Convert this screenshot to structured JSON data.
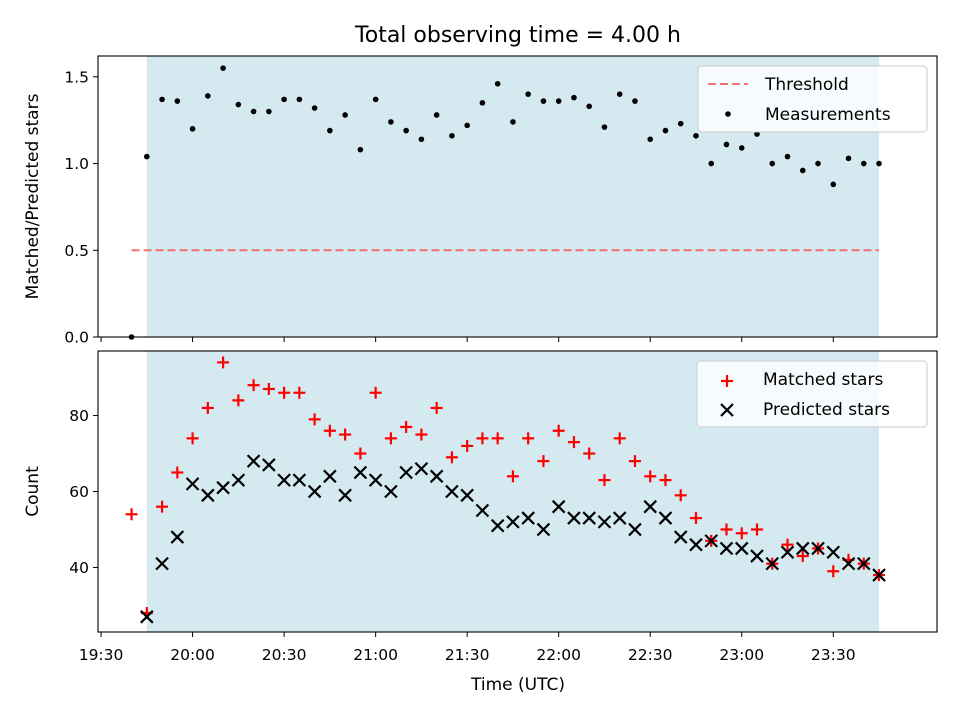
{
  "chart_data": {
    "title": "Total observing time = 4.00 h",
    "xlabel": "Time (UTC)",
    "x_ticks": [
      "19:30",
      "20:00",
      "20:30",
      "21:00",
      "21:30",
      "22:00",
      "22:30",
      "23:00",
      "23:30"
    ],
    "x_tick_minutes": [
      1170,
      1200,
      1230,
      1260,
      1290,
      1320,
      1350,
      1380,
      1410
    ],
    "xlim_minutes": [
      1169,
      1444
    ],
    "observing_window_minutes": [
      1185,
      1425
    ],
    "window_color": "#d4eaf0",
    "panels": [
      {
        "type": "scatter",
        "ylabel": "Matched/Predicted stars",
        "ylim": [
          0,
          1.62
        ],
        "y_ticks": [
          "0.0",
          "0.5",
          "1.0",
          "1.5"
        ],
        "y_tick_values": [
          0,
          0.5,
          1.0,
          1.5
        ],
        "threshold": {
          "name": "Threshold",
          "value": 0.5,
          "x_range": [
            1180,
            1425
          ],
          "color": "#f07070"
        },
        "series": [
          {
            "name": "Measurements",
            "color": "#000000",
            "x": [
              1180,
              1185,
              1190,
              1195,
              1200,
              1205,
              1210,
              1215,
              1220,
              1225,
              1230,
              1235,
              1240,
              1245,
              1250,
              1255,
              1260,
              1265,
              1270,
              1275,
              1280,
              1285,
              1290,
              1295,
              1300,
              1305,
              1310,
              1315,
              1320,
              1325,
              1330,
              1335,
              1340,
              1345,
              1350,
              1355,
              1360,
              1365,
              1370,
              1375,
              1380,
              1385,
              1390,
              1395,
              1400,
              1405,
              1410,
              1415,
              1420,
              1425
            ],
            "y": [
              0.0,
              1.04,
              1.37,
              1.36,
              1.2,
              1.39,
              1.55,
              1.34,
              1.3,
              1.3,
              1.37,
              1.37,
              1.32,
              1.19,
              1.28,
              1.08,
              1.37,
              1.24,
              1.19,
              1.14,
              1.28,
              1.16,
              1.22,
              1.35,
              1.46,
              1.24,
              1.4,
              1.36,
              1.36,
              1.38,
              1.33,
              1.21,
              1.4,
              1.36,
              1.14,
              1.19,
              1.23,
              1.16,
              1.0,
              1.11,
              1.09,
              1.17,
              1.0,
              1.04,
              0.96,
              1.0,
              0.88,
              1.03,
              1.0,
              1.0
            ]
          }
        ],
        "legend_position": "upper right"
      },
      {
        "type": "scatter",
        "ylabel": "Count",
        "ylim": [
          23,
          97
        ],
        "y_ticks": [
          "40",
          "60",
          "80"
        ],
        "y_tick_values": [
          40,
          60,
          80
        ],
        "series": [
          {
            "name": "Matched stars",
            "marker": "plus",
            "color": "#ff0000",
            "x": [
              1180,
              1185,
              1190,
              1195,
              1200,
              1205,
              1210,
              1215,
              1220,
              1225,
              1230,
              1235,
              1240,
              1245,
              1250,
              1255,
              1260,
              1265,
              1270,
              1275,
              1280,
              1285,
              1290,
              1295,
              1300,
              1305,
              1310,
              1315,
              1320,
              1325,
              1330,
              1335,
              1340,
              1345,
              1350,
              1355,
              1360,
              1365,
              1370,
              1375,
              1380,
              1385,
              1390,
              1395,
              1400,
              1405,
              1410,
              1415,
              1420,
              1425
            ],
            "y": [
              54,
              28,
              56,
              65,
              74,
              82,
              94,
              84,
              88,
              87,
              86,
              86,
              79,
              76,
              75,
              70,
              86,
              74,
              77,
              75,
              82,
              69,
              72,
              74,
              74,
              64,
              74,
              68,
              76,
              73,
              70,
              63,
              74,
              68,
              64,
              63,
              59,
              53,
              47,
              50,
              49,
              50,
              41,
              46,
              43,
              45,
              39,
              42,
              41,
              38
            ]
          },
          {
            "name": "Predicted stars",
            "marker": "x",
            "color": "#000000",
            "x": [
              1185,
              1190,
              1195,
              1200,
              1205,
              1210,
              1215,
              1220,
              1225,
              1230,
              1235,
              1240,
              1245,
              1250,
              1255,
              1260,
              1265,
              1270,
              1275,
              1280,
              1285,
              1290,
              1295,
              1300,
              1305,
              1310,
              1315,
              1320,
              1325,
              1330,
              1335,
              1340,
              1345,
              1350,
              1355,
              1360,
              1365,
              1370,
              1375,
              1380,
              1385,
              1390,
              1395,
              1400,
              1405,
              1410,
              1415,
              1420,
              1425
            ],
            "y": [
              27,
              41,
              48,
              62,
              59,
              61,
              63,
              68,
              67,
              63,
              63,
              60,
              64,
              59,
              65,
              63,
              60,
              65,
              66,
              64,
              60,
              59,
              55,
              51,
              52,
              53,
              50,
              56,
              53,
              53,
              52,
              53,
              50,
              56,
              53,
              48,
              46,
              47,
              45,
              45,
              43,
              41,
              44,
              45,
              45,
              44,
              41,
              41,
              38
            ]
          }
        ],
        "legend_position": "upper right"
      }
    ]
  }
}
